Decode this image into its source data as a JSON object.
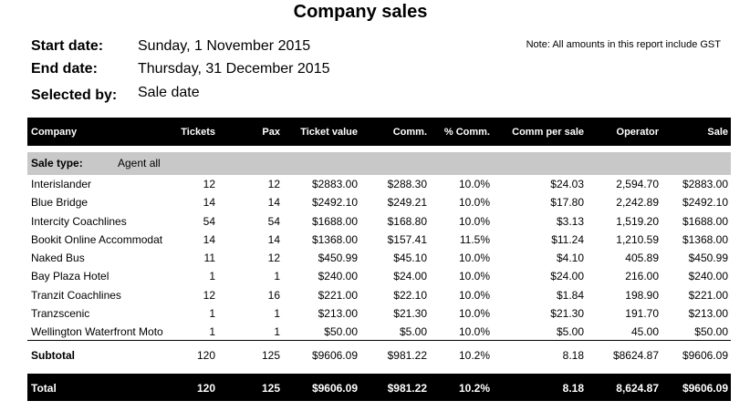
{
  "title": "Company sales",
  "meta": {
    "start_label": "Start date:",
    "start_value": "Sunday, 1 November 2015",
    "end_label": "End date:",
    "end_value": "Thursday, 31 December 2015",
    "selected_label": "Selected by:",
    "selected_value": "Sale date",
    "note": "Note: All amounts in this report include GST"
  },
  "columns": [
    "Company",
    "Tickets",
    "Pax",
    "Ticket value",
    "Comm.",
    "% Comm.",
    "Comm per sale",
    "Operator",
    "Sale"
  ],
  "sale_type": {
    "label": "Sale type:",
    "value": "Agent all"
  },
  "rows": [
    [
      "Interislander",
      "12",
      "12",
      "$2883.00",
      "$288.30",
      "10.0%",
      "$24.03",
      "2,594.70",
      "$2883.00"
    ],
    [
      "Blue Bridge",
      "14",
      "14",
      "$2492.10",
      "$249.21",
      "10.0%",
      "$17.80",
      "2,242.89",
      "$2492.10"
    ],
    [
      "Intercity Coachlines",
      "54",
      "54",
      "$1688.00",
      "$168.80",
      "10.0%",
      "$3.13",
      "1,519.20",
      "$1688.00"
    ],
    [
      "Bookit Online Accommodat",
      "14",
      "14",
      "$1368.00",
      "$157.41",
      "11.5%",
      "$11.24",
      "1,210.59",
      "$1368.00"
    ],
    [
      "Naked Bus",
      "11",
      "12",
      "$450.99",
      "$45.10",
      "10.0%",
      "$4.10",
      "405.89",
      "$450.99"
    ],
    [
      "Bay Plaza Hotel",
      "1",
      "1",
      "$240.00",
      "$24.00",
      "10.0%",
      "$24.00",
      "216.00",
      "$240.00"
    ],
    [
      "Tranzit Coachlines",
      "12",
      "16",
      "$221.00",
      "$22.10",
      "10.0%",
      "$1.84",
      "198.90",
      "$221.00"
    ],
    [
      "Tranzscenic",
      "1",
      "1",
      "$213.00",
      "$21.30",
      "10.0%",
      "$21.30",
      "191.70",
      "$213.00"
    ],
    [
      "Wellington Waterfront Moto",
      "1",
      "1",
      "$50.00",
      "$5.00",
      "10.0%",
      "$5.00",
      "45.00",
      "$50.00"
    ]
  ],
  "subtotal": [
    "Subtotal",
    "120",
    "125",
    "$9606.09",
    "$981.22",
    "10.2%",
    "8.18",
    "$8624.87",
    "$9606.09"
  ],
  "total": [
    "Total",
    "120",
    "125",
    "$9606.09",
    "$981.22",
    "10.2%",
    "8.18",
    "8,624.87",
    "$9606.09"
  ]
}
